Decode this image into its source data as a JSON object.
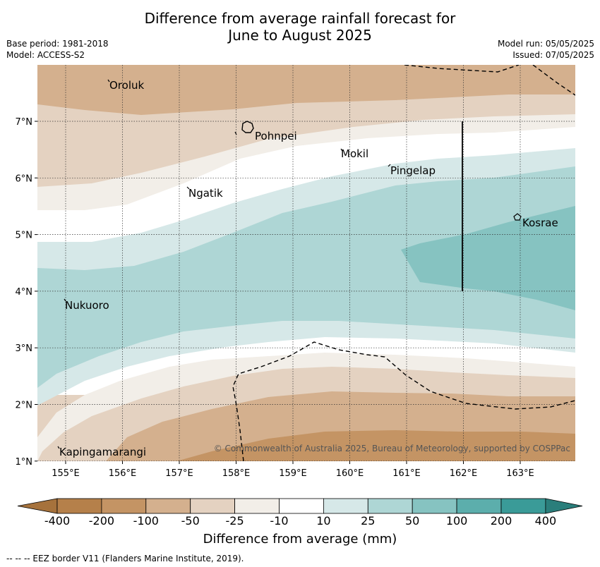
{
  "title": {
    "line1": "Difference from average rainfall forecast for",
    "line2": "June to August 2025"
  },
  "meta": {
    "base_period": "Base period: 1981-2018",
    "model": "Model: ACCESS-S2",
    "model_run": "Model run: 05/05/2025",
    "issued": "Issued: 07/05/2025"
  },
  "map": {
    "x_ticks": [
      {
        "lon": 155,
        "label": "155°E"
      },
      {
        "lon": 156,
        "label": "156°E"
      },
      {
        "lon": 157,
        "label": "157°E"
      },
      {
        "lon": 158,
        "label": "158°E"
      },
      {
        "lon": 159,
        "label": "159°E"
      },
      {
        "lon": 160,
        "label": "160°E"
      },
      {
        "lon": 161,
        "label": "161°E"
      },
      {
        "lon": 162,
        "label": "162°E"
      },
      {
        "lon": 163,
        "label": "163°E"
      }
    ],
    "y_ticks": [
      {
        "lat": 7,
        "label": "7°N"
      },
      {
        "lat": 6,
        "label": "6°N"
      },
      {
        "lat": 5,
        "label": "5°N"
      },
      {
        "lat": 4,
        "label": "4°N"
      },
      {
        "lat": 3,
        "label": "3°N"
      },
      {
        "lat": 2,
        "label": "2°N"
      },
      {
        "lat": 1,
        "label": "1°N"
      }
    ],
    "places": [
      {
        "name": "Oroluk"
      },
      {
        "name": "Pohnpei"
      },
      {
        "name": "Mokil"
      },
      {
        "name": "Pingelap"
      },
      {
        "name": "Ngatik"
      },
      {
        "name": "Kosrae"
      },
      {
        "name": "Nukuoro"
      },
      {
        "name": "Kapingamarangi"
      }
    ],
    "copyright": "© Commonwealth of Australia 2025, Bureau of Meteorology, supported by COSPPac"
  },
  "colorbar": {
    "title": "Difference from average (mm)",
    "colors": [
      "#a6723c",
      "#b5804a",
      "#c49464",
      "#d4b08e",
      "#e4d2c1",
      "#f2eee8",
      "#ffffff",
      "#d6e8e8",
      "#aed6d5",
      "#86c3c1",
      "#5caeac",
      "#3a9b98",
      "#2a7e7b"
    ],
    "labels": [
      "-400",
      "-200",
      "-100",
      "-50",
      "-25",
      "-10",
      "10",
      "25",
      "50",
      "100",
      "200",
      "400"
    ]
  },
  "footnote": "--  --  -- EEZ border V11 (Flanders Marine Institute, 2019)."
}
